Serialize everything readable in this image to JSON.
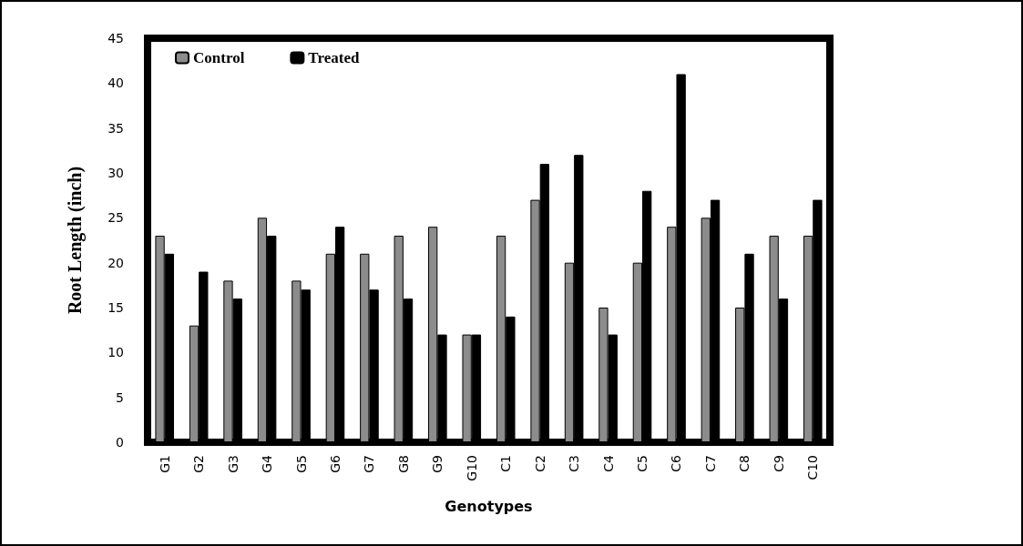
{
  "chart_data": {
    "type": "bar",
    "xlabel": "Genotypes",
    "ylabel": "Root Length (inch)",
    "categories": [
      "G1",
      "G2",
      "G3",
      "G4",
      "G5",
      "G6",
      "G7",
      "G8",
      "G9",
      "G10",
      "C1",
      "C2",
      "C3",
      "C4",
      "C5",
      "C6",
      "C7",
      "C8",
      "C9",
      "C10"
    ],
    "series": [
      {
        "name": "Control",
        "color": "#8c8c8c",
        "values": [
          23,
          13,
          18,
          25,
          18,
          21,
          21,
          23,
          24,
          12,
          23,
          27,
          20,
          15,
          20,
          24,
          25,
          15,
          23,
          23
        ]
      },
      {
        "name": "Treated",
        "color": "#000000",
        "values": [
          21,
          19,
          16,
          23,
          17,
          24,
          17,
          16,
          12,
          12,
          14,
          31,
          32,
          12,
          28,
          41,
          27,
          21,
          16,
          27
        ]
      }
    ],
    "ylim": [
      0,
      45
    ],
    "yticks": [
      0,
      5,
      10,
      15,
      20,
      25,
      30,
      35,
      40,
      45
    ],
    "grid": false,
    "legend": "top left"
  }
}
